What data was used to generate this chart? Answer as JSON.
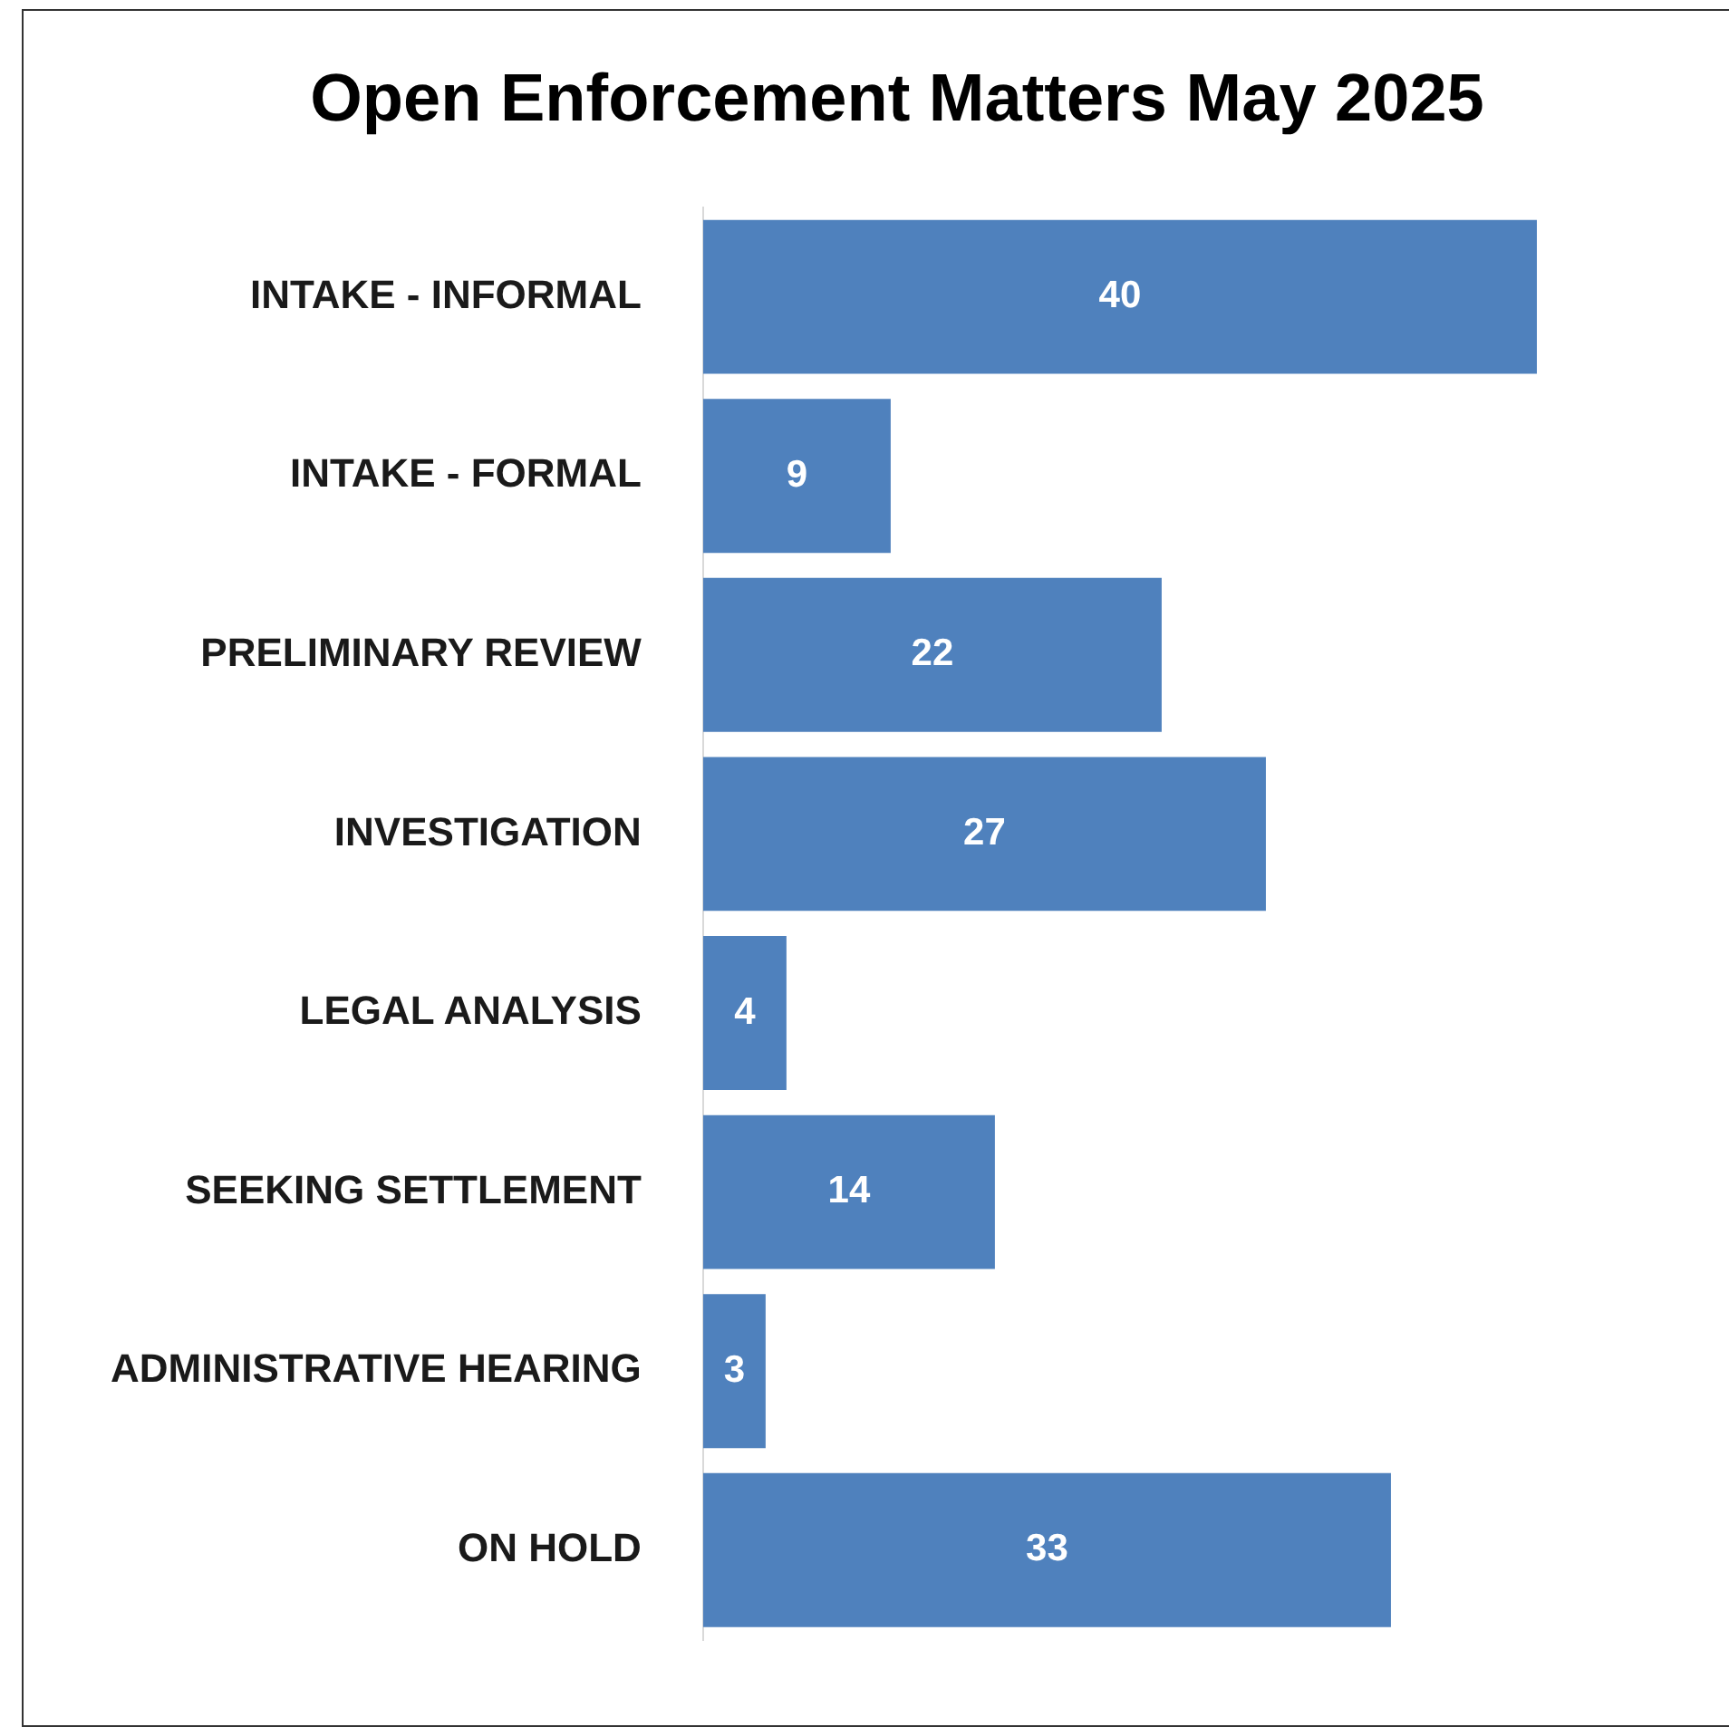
{
  "chart_data": {
    "type": "bar",
    "orientation": "horizontal",
    "title": "Open Enforcement Matters May 2025",
    "categories": [
      "INTAKE - INFORMAL",
      "INTAKE - FORMAL",
      "PRELIMINARY REVIEW",
      "INVESTIGATION",
      "LEGAL ANALYSIS",
      "SEEKING SETTLEMENT",
      "ADMINISTRATIVE HEARING",
      "ON HOLD"
    ],
    "values": [
      40,
      9,
      22,
      27,
      4,
      14,
      3,
      33
    ],
    "color": "#4f81bd",
    "data_labels": true,
    "legend": false
  }
}
